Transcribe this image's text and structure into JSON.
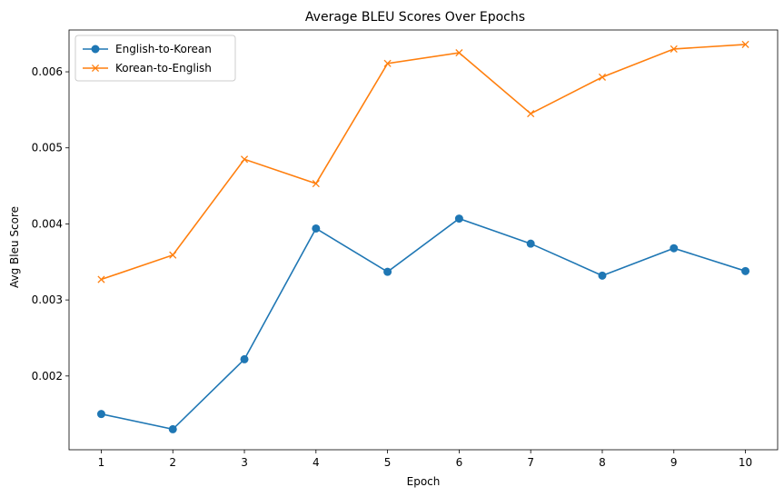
{
  "chart_data": {
    "type": "line",
    "title": "Average BLEU Scores Over Epochs",
    "xlabel": "Epoch",
    "ylabel": "Avg Bleu Score",
    "x": [
      1,
      2,
      3,
      4,
      5,
      6,
      7,
      8,
      9,
      10
    ],
    "xticks": [
      "1",
      "2",
      "3",
      "4",
      "5",
      "6",
      "7",
      "8",
      "9",
      "10"
    ],
    "xlim": [
      0.55,
      10.45
    ],
    "ylim": [
      0.00103,
      0.00655
    ],
    "yticks": [
      0.002,
      0.003,
      0.004,
      0.005,
      0.006
    ],
    "ytick_labels": [
      "0.002",
      "0.003",
      "0.004",
      "0.005",
      "0.006"
    ],
    "grid": false,
    "legend_position": "top-left",
    "series": [
      {
        "name": "English-to-Korean",
        "color": "#1f77b4",
        "marker": "circle",
        "values": [
          0.0015,
          0.0013,
          0.00222,
          0.00394,
          0.00337,
          0.00407,
          0.00374,
          0.00332,
          0.00368,
          0.00338
        ]
      },
      {
        "name": "Korean-to-English",
        "color": "#ff7f0e",
        "marker": "x",
        "values": [
          0.00327,
          0.00359,
          0.00485,
          0.00453,
          0.00611,
          0.00625,
          0.00545,
          0.00593,
          0.0063,
          0.00636
        ]
      }
    ]
  }
}
